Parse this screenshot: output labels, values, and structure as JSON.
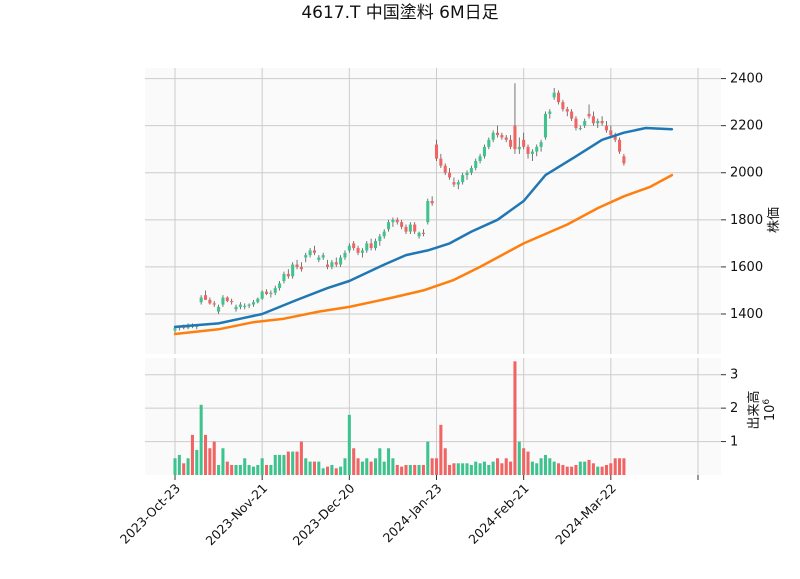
{
  "chart_data": {
    "type": "candlestick",
    "title": "4617.T 中国塗料 6M日足",
    "price_panel": {
      "ylabel": "株価",
      "yticks": [
        1400,
        1600,
        1800,
        2000,
        2200,
        2400
      ],
      "ylim": [
        1230,
        2445
      ],
      "grid": true
    },
    "volume_panel": {
      "ylabel": "出来高",
      "multiplier": "10",
      "multiplier_exp": "6",
      "yticks": [
        1,
        2,
        3
      ],
      "ylim": [
        0,
        3.5
      ],
      "grid": true
    },
    "x_ticks": [
      {
        "label": "2023-Oct-23",
        "index": 0
      },
      {
        "label": "2023-Nov-21",
        "index": 20
      },
      {
        "label": "2023-Dec-20",
        "index": 40
      },
      {
        "label": "2024-Jan-23",
        "index": 60
      },
      {
        "label": "2024-Feb-21",
        "index": 80
      },
      {
        "label": "2024-Mar-22",
        "index": 100
      },
      {
        "label": "",
        "index": 120
      }
    ],
    "colors": {
      "up": "#26a69a",
      "up_fill": "#3fc38e",
      "down": "#ef5350",
      "down_fill": "#f06464",
      "ma_short": "#1f77b4",
      "ma_long": "#ff7f0e"
    },
    "candles": [
      [
        1330,
        1345,
        1320,
        1340,
        0.5
      ],
      [
        1340,
        1350,
        1330,
        1345,
        0.6
      ],
      [
        1345,
        1355,
        1335,
        1340,
        0.35
      ],
      [
        1340,
        1360,
        1335,
        1350,
        0.5
      ],
      [
        1350,
        1360,
        1340,
        1345,
        1.2
      ],
      [
        1345,
        1355,
        1335,
        1350,
        0.75
      ],
      [
        1450,
        1480,
        1440,
        1470,
        2.1
      ],
      [
        1480,
        1500,
        1460,
        1460,
        1.2
      ],
      [
        1460,
        1470,
        1440,
        1445,
        0.8
      ],
      [
        1445,
        1455,
        1430,
        1440,
        1.0
      ],
      [
        1410,
        1440,
        1400,
        1430,
        0.3
      ],
      [
        1440,
        1480,
        1430,
        1470,
        0.8
      ],
      [
        1470,
        1475,
        1450,
        1455,
        0.4
      ],
      [
        1455,
        1465,
        1440,
        1450,
        0.3
      ],
      [
        1420,
        1440,
        1410,
        1430,
        0.3
      ],
      [
        1430,
        1450,
        1420,
        1440,
        0.3
      ],
      [
        1430,
        1445,
        1420,
        1435,
        0.5
      ],
      [
        1435,
        1445,
        1425,
        1440,
        0.3
      ],
      [
        1440,
        1460,
        1430,
        1450,
        0.25
      ],
      [
        1450,
        1470,
        1445,
        1465,
        0.3
      ],
      [
        1465,
        1500,
        1460,
        1495,
        0.5
      ],
      [
        1495,
        1505,
        1480,
        1485,
        0.3
      ],
      [
        1485,
        1500,
        1470,
        1490,
        0.3
      ],
      [
        1490,
        1520,
        1480,
        1510,
        0.6
      ],
      [
        1510,
        1540,
        1500,
        1530,
        0.6
      ],
      [
        1540,
        1580,
        1530,
        1570,
        0.6
      ],
      [
        1570,
        1590,
        1550,
        1560,
        0.7
      ],
      [
        1560,
        1620,
        1550,
        1610,
        0.7
      ],
      [
        1610,
        1630,
        1590,
        1600,
        0.7
      ],
      [
        1600,
        1620,
        1580,
        1590,
        1.0
      ],
      [
        1640,
        1660,
        1620,
        1650,
        0.5
      ],
      [
        1650,
        1680,
        1640,
        1670,
        0.4
      ],
      [
        1670,
        1690,
        1650,
        1660,
        0.4
      ],
      [
        1630,
        1650,
        1620,
        1640,
        0.4
      ],
      [
        1640,
        1660,
        1630,
        1650,
        0.2
      ],
      [
        1610,
        1630,
        1590,
        1600,
        0.25
      ],
      [
        1600,
        1630,
        1590,
        1620,
        0.3
      ],
      [
        1620,
        1640,
        1600,
        1610,
        0.2
      ],
      [
        1610,
        1650,
        1600,
        1640,
        0.25
      ],
      [
        1640,
        1670,
        1630,
        1660,
        0.5
      ],
      [
        1670,
        1700,
        1660,
        1690,
        1.8
      ],
      [
        1700,
        1710,
        1670,
        1680,
        0.8
      ],
      [
        1680,
        1690,
        1650,
        1660,
        0.5
      ],
      [
        1660,
        1680,
        1640,
        1670,
        0.4
      ],
      [
        1670,
        1710,
        1660,
        1700,
        0.5
      ],
      [
        1700,
        1720,
        1670,
        1680,
        0.4
      ],
      [
        1680,
        1720,
        1670,
        1710,
        0.5
      ],
      [
        1710,
        1740,
        1690,
        1730,
        0.8
      ],
      [
        1730,
        1760,
        1720,
        1750,
        0.4
      ],
      [
        1760,
        1800,
        1750,
        1790,
        0.8
      ],
      [
        1790,
        1810,
        1770,
        1800,
        0.5
      ],
      [
        1800,
        1810,
        1780,
        1790,
        0.3
      ],
      [
        1790,
        1800,
        1760,
        1770,
        0.25
      ],
      [
        1770,
        1780,
        1740,
        1750,
        0.3
      ],
      [
        1750,
        1790,
        1740,
        1780,
        0.3
      ],
      [
        1780,
        1790,
        1740,
        1750,
        0.3
      ],
      [
        1730,
        1750,
        1720,
        1745,
        0.3
      ],
      [
        1745,
        1760,
        1730,
        1740,
        0.3
      ],
      [
        1790,
        1890,
        1780,
        1880,
        1.0
      ],
      [
        1880,
        1900,
        1860,
        1870,
        0.5
      ],
      [
        2120,
        2140,
        2050,
        2060,
        0.5
      ],
      [
        2060,
        2080,
        2020,
        2030,
        1.5
      ],
      [
        2030,
        2040,
        1990,
        2000,
        0.8
      ],
      [
        2000,
        2020,
        1970,
        1980,
        0.3
      ],
      [
        1960,
        1980,
        1940,
        1950,
        0.35
      ],
      [
        1950,
        1970,
        1930,
        1960,
        0.35
      ],
      [
        1960,
        2000,
        1950,
        1990,
        0.35
      ],
      [
        1990,
        2010,
        1970,
        2000,
        0.35
      ],
      [
        2000,
        2030,
        1990,
        2020,
        0.3
      ],
      [
        2020,
        2060,
        2010,
        2050,
        0.4
      ],
      [
        2050,
        2080,
        2040,
        2070,
        0.35
      ],
      [
        2070,
        2120,
        2060,
        2110,
        0.4
      ],
      [
        2110,
        2150,
        2100,
        2140,
        0.3
      ],
      [
        2140,
        2180,
        2130,
        2170,
        0.4
      ],
      [
        2170,
        2200,
        2150,
        2160,
        0.5
      ],
      [
        2160,
        2170,
        2140,
        2150,
        0.35
      ],
      [
        2150,
        2160,
        2130,
        2140,
        0.5
      ],
      [
        2140,
        2160,
        2100,
        2110,
        0.4
      ],
      [
        2200,
        2380,
        2080,
        2100,
        3.4
      ],
      [
        2100,
        2150,
        2080,
        2110,
        1.0
      ],
      [
        2140,
        2170,
        2100,
        2110,
        0.8
      ],
      [
        2110,
        2120,
        2060,
        2080,
        0.7
      ],
      [
        2080,
        2100,
        2050,
        2090,
        0.4
      ],
      [
        2090,
        2120,
        2070,
        2110,
        0.35
      ],
      [
        2110,
        2140,
        2090,
        2130,
        0.5
      ],
      [
        2150,
        2260,
        2140,
        2250,
        0.6
      ],
      [
        2250,
        2270,
        2230,
        2260,
        0.5
      ],
      [
        2320,
        2360,
        2310,
        2340,
        0.4
      ],
      [
        2340,
        2350,
        2290,
        2300,
        0.35
      ],
      [
        2300,
        2310,
        2260,
        2270,
        0.3
      ],
      [
        2270,
        2280,
        2240,
        2260,
        0.25
      ],
      [
        2260,
        2270,
        2220,
        2230,
        0.25
      ],
      [
        2230,
        2240,
        2180,
        2190,
        0.3
      ],
      [
        2190,
        2200,
        2180,
        2190,
        0.4
      ],
      [
        2200,
        2230,
        2190,
        2220,
        0.4
      ],
      [
        2250,
        2290,
        2230,
        2240,
        0.45
      ],
      [
        2240,
        2260,
        2200,
        2210,
        0.35
      ],
      [
        2210,
        2230,
        2190,
        2220,
        0.25
      ],
      [
        2220,
        2240,
        2200,
        2210,
        0.25
      ],
      [
        2200,
        2220,
        2170,
        2180,
        0.3
      ],
      [
        2180,
        2200,
        2150,
        2160,
        0.35
      ],
      [
        2160,
        2170,
        2130,
        2140,
        0.5
      ],
      [
        2140,
        2150,
        2080,
        2090,
        0.5
      ],
      [
        2070,
        2080,
        2030,
        2040,
        0.5
      ]
    ],
    "sma_short": [
      [
        0,
        1345
      ],
      [
        10,
        1360
      ],
      [
        15,
        1380
      ],
      [
        20,
        1400
      ],
      [
        28,
        1460
      ],
      [
        35,
        1510
      ],
      [
        40,
        1540
      ],
      [
        48,
        1610
      ],
      [
        53,
        1650
      ],
      [
        58,
        1670
      ],
      [
        63,
        1700
      ],
      [
        68,
        1750
      ],
      [
        74,
        1800
      ],
      [
        80,
        1880
      ],
      [
        85,
        1990
      ],
      [
        92,
        2070
      ],
      [
        98,
        2140
      ],
      [
        103,
        2170
      ],
      [
        108,
        2190
      ],
      [
        114,
        2185
      ]
    ],
    "sma_long": [
      [
        0,
        1315
      ],
      [
        10,
        1335
      ],
      [
        18,
        1365
      ],
      [
        25,
        1380
      ],
      [
        33,
        1410
      ],
      [
        40,
        1430
      ],
      [
        50,
        1470
      ],
      [
        57,
        1500
      ],
      [
        64,
        1545
      ],
      [
        70,
        1600
      ],
      [
        75,
        1650
      ],
      [
        80,
        1700
      ],
      [
        90,
        1780
      ],
      [
        97,
        1850
      ],
      [
        103,
        1900
      ],
      [
        109,
        1940
      ],
      [
        114,
        1990
      ]
    ]
  }
}
